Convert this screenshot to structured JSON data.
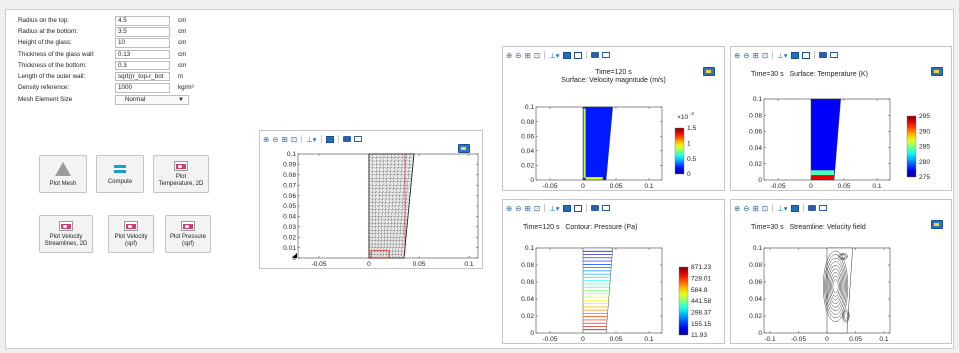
{
  "form": {
    "rows": [
      {
        "label": "Radius on the top:",
        "value": "4.5",
        "unit": "cm"
      },
      {
        "label": "Radius at the bottom:",
        "value": "3.5",
        "unit": "cm"
      },
      {
        "label": "Height of the glass:",
        "value": "10",
        "unit": "cm"
      },
      {
        "label": "Thickness of the glass wall:",
        "value": "0.13",
        "unit": "cm"
      },
      {
        "label": "Thickness of the bottom:",
        "value": "0.3",
        "unit": "cm"
      },
      {
        "label": "Length of the outer wall:",
        "value": "sqrt((r_top-r_bot",
        "unit": "m"
      },
      {
        "label": "Density reference:",
        "value": "1000",
        "unit": "kg/m³"
      }
    ],
    "mesh_label": "Mesh Element Size",
    "mesh_value": "Normal"
  },
  "buttons": {
    "plot_mesh": "Plot Mesh",
    "compute": "Compute",
    "plot_temp_1": "Plot",
    "plot_temp_2": "Temperature, 2D",
    "stream_1": "Plot Velocity",
    "stream_2": "Streamlines, 2D",
    "vel_1": "Plot Velocity",
    "vel_2": "(spf)",
    "pres_1": "Plot Pressure",
    "pres_2": "(spf)"
  },
  "icons": [
    "zoom-in-icon",
    "zoom-out-icon",
    "zoom-box-icon",
    "zoom-extents-icon",
    "axis-orientation-icon",
    "grid-icon",
    "panel-toggle-icon",
    "camera-icon",
    "print-icon",
    "color-legend-icon"
  ],
  "plots": {
    "mesh": {
      "yticks": [
        "0.1",
        "0.09",
        "0.08",
        "0.07",
        "0.06",
        "0.05",
        "0.04",
        "0.03",
        "0.02",
        "0.01",
        "0"
      ],
      "xticks": [
        "-0.05",
        "0",
        "0.05",
        "0.1"
      ]
    },
    "velocity": {
      "time": "Time=120 s",
      "title": "Surface: Velocity magnitude (m/s)",
      "yticks": [
        "0.1",
        "0.08",
        "0.06",
        "0.04",
        "0.02",
        "0"
      ],
      "xticks": [
        "-0.05",
        "0",
        "0.05",
        "0.1"
      ],
      "scale": "×10",
      "scale_exp": "-2",
      "legend": [
        "1.5",
        "1",
        "0.5",
        "0"
      ]
    },
    "temperature": {
      "time": "Time=30 s",
      "title": "Surface: Temperature (K)",
      "yticks": [
        "0.1",
        "0.08",
        "0.06",
        "0.04",
        "0.02",
        "0"
      ],
      "xticks": [
        "-0.05",
        "0",
        "0.05",
        "0.1"
      ],
      "legend": [
        "295",
        "290",
        "285",
        "280",
        "275"
      ]
    },
    "pressure": {
      "time": "Time=120 s",
      "title": "Contour: Pressure (Pa)",
      "yticks": [
        "0.1",
        "0.08",
        "0.06",
        "0.04",
        "0.02",
        "0"
      ],
      "xticks": [
        "-0.05",
        "0",
        "0.05",
        "0.1"
      ],
      "legend": [
        "871.23",
        "728.01",
        "584.8",
        "441.58",
        "298.37",
        "155.15",
        "11.93"
      ]
    },
    "streamline": {
      "time": "Time=30 s",
      "title": "Streamline: Velocity field",
      "yticks": [
        "0.1",
        "0.08",
        "0.06",
        "0.04",
        "0.02",
        "0"
      ],
      "xticks": [
        "-0.1",
        "-0.05",
        "0",
        "0.05",
        "0.1"
      ]
    }
  }
}
